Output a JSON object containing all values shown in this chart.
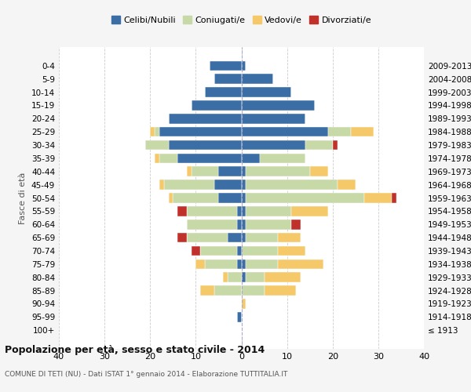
{
  "age_groups": [
    "100+",
    "95-99",
    "90-94",
    "85-89",
    "80-84",
    "75-79",
    "70-74",
    "65-69",
    "60-64",
    "55-59",
    "50-54",
    "45-49",
    "40-44",
    "35-39",
    "30-34",
    "25-29",
    "20-24",
    "15-19",
    "10-14",
    "5-9",
    "0-4"
  ],
  "birth_years": [
    "≤ 1913",
    "1914-1918",
    "1919-1923",
    "1924-1928",
    "1929-1933",
    "1934-1938",
    "1939-1943",
    "1944-1948",
    "1949-1953",
    "1954-1958",
    "1959-1963",
    "1964-1968",
    "1969-1973",
    "1974-1978",
    "1979-1983",
    "1984-1988",
    "1989-1993",
    "1994-1998",
    "1999-2003",
    "2004-2008",
    "2009-2013"
  ],
  "males": {
    "celibi": [
      0,
      1,
      0,
      0,
      0,
      1,
      1,
      3,
      1,
      1,
      5,
      6,
      5,
      14,
      16,
      18,
      16,
      11,
      8,
      6,
      7
    ],
    "coniugati": [
      0,
      0,
      0,
      6,
      3,
      7,
      8,
      9,
      11,
      11,
      10,
      11,
      6,
      4,
      5,
      1,
      0,
      0,
      0,
      0,
      0
    ],
    "vedovi": [
      0,
      0,
      0,
      3,
      1,
      2,
      0,
      0,
      0,
      0,
      1,
      1,
      1,
      1,
      0,
      1,
      0,
      0,
      0,
      0,
      0
    ],
    "divorziati": [
      0,
      0,
      0,
      0,
      0,
      0,
      2,
      2,
      0,
      2,
      0,
      0,
      0,
      0,
      0,
      0,
      0,
      0,
      0,
      0,
      0
    ]
  },
  "females": {
    "nubili": [
      0,
      0,
      0,
      0,
      1,
      1,
      0,
      1,
      1,
      1,
      1,
      1,
      1,
      4,
      14,
      19,
      14,
      16,
      11,
      7,
      1
    ],
    "coniugate": [
      0,
      0,
      0,
      5,
      4,
      7,
      8,
      7,
      10,
      10,
      26,
      20,
      14,
      10,
      6,
      5,
      0,
      0,
      0,
      0,
      0
    ],
    "vedove": [
      0,
      0,
      1,
      7,
      8,
      10,
      6,
      5,
      0,
      8,
      6,
      4,
      4,
      0,
      0,
      5,
      0,
      0,
      0,
      0,
      0
    ],
    "divorziate": [
      0,
      0,
      0,
      0,
      0,
      0,
      0,
      0,
      2,
      0,
      1,
      0,
      0,
      0,
      1,
      0,
      0,
      0,
      0,
      0,
      0
    ]
  },
  "colors": {
    "celibi": "#3a6ea5",
    "coniugati": "#c8d9a8",
    "vedovi": "#f5c96a",
    "divorziati": "#c0312b"
  },
  "xlim": [
    -40,
    40
  ],
  "xticks": [
    -40,
    -30,
    -20,
    -10,
    0,
    10,
    20,
    30,
    40
  ],
  "xticklabels": [
    "40",
    "30",
    "20",
    "10",
    "0",
    "10",
    "20",
    "30",
    "40"
  ],
  "title": "Popolazione per età, sesso e stato civile - 2014",
  "subtitle": "COMUNE DI TETI (NU) - Dati ISTAT 1° gennaio 2014 - Elaborazione TUTTITALIA.IT",
  "ylabel": "Fasce di età",
  "legend_labels": [
    "Celibi/Nubili",
    "Coniugati/e",
    "Vedovi/e",
    "Divorziati/e"
  ],
  "bg_color": "#f5f5f5",
  "plot_bg_color": "#ffffff"
}
